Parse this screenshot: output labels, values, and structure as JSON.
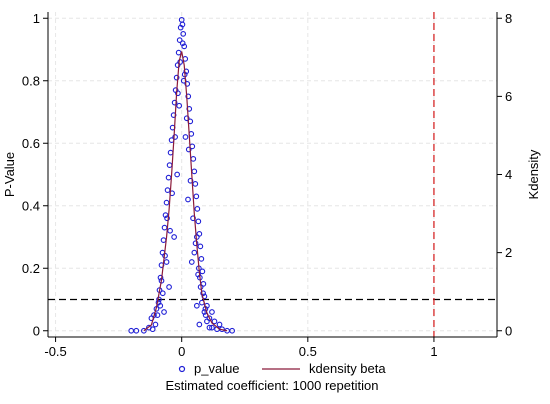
{
  "chart_data": {
    "type": "scatter",
    "title": "",
    "xlabel": "",
    "ylabel": "P-Value",
    "y2label": "Kdensity",
    "xlim": [
      -0.53,
      1.25
    ],
    "ylim": [
      -0.02,
      1.02
    ],
    "y2lim": [
      -0.16,
      8.16
    ],
    "x_ticks": [
      -0.5,
      0,
      0.5,
      1
    ],
    "x_tick_labels": [
      "-0.5",
      "0",
      "0.5",
      "1"
    ],
    "y_ticks": [
      0,
      0.2,
      0.4,
      0.6,
      0.8,
      1
    ],
    "y_tick_labels": [
      "0",
      "0.2",
      "0.4",
      "0.6",
      "0.8",
      "1"
    ],
    "y2_ticks": [
      0,
      2,
      4,
      6,
      8
    ],
    "y2_tick_labels": [
      "0",
      "2",
      "4",
      "6",
      "8"
    ],
    "grid": true,
    "reference_lines": [
      {
        "orientation": "horizontal",
        "value": 0.1,
        "style": "dashed",
        "color": "#000000"
      },
      {
        "orientation": "vertical",
        "value": 1,
        "style": "dashed",
        "color": "#d62728"
      }
    ],
    "series": [
      {
        "name": "p_value",
        "kind": "scatter",
        "axis": "left",
        "color": "#1f1fd6",
        "marker": "hollow-circle",
        "points": [
          [
            0.0,
            0.995
          ],
          [
            0.003,
            0.98
          ],
          [
            -0.004,
            0.97
          ],
          [
            0.006,
            0.95
          ],
          [
            -0.008,
            0.93
          ],
          [
            0.01,
            0.91
          ],
          [
            -0.012,
            0.89
          ],
          [
            0.014,
            0.87
          ],
          [
            -0.016,
            0.85
          ],
          [
            0.018,
            0.83
          ],
          [
            -0.02,
            0.81
          ],
          [
            0.022,
            0.79
          ],
          [
            -0.024,
            0.77
          ],
          [
            0.026,
            0.75
          ],
          [
            -0.028,
            0.73
          ],
          [
            0.03,
            0.71
          ],
          [
            -0.032,
            0.69
          ],
          [
            0.034,
            0.67
          ],
          [
            -0.036,
            0.65
          ],
          [
            0.038,
            0.63
          ],
          [
            -0.04,
            0.61
          ],
          [
            0.042,
            0.59
          ],
          [
            -0.044,
            0.57
          ],
          [
            0.046,
            0.55
          ],
          [
            -0.048,
            0.53
          ],
          [
            0.05,
            0.51
          ],
          [
            -0.052,
            0.49
          ],
          [
            0.054,
            0.47
          ],
          [
            -0.056,
            0.45
          ],
          [
            0.058,
            0.43
          ],
          [
            -0.06,
            0.41
          ],
          [
            0.062,
            0.39
          ],
          [
            -0.064,
            0.37
          ],
          [
            0.066,
            0.35
          ],
          [
            -0.068,
            0.33
          ],
          [
            0.07,
            0.31
          ],
          [
            -0.072,
            0.29
          ],
          [
            0.074,
            0.27
          ],
          [
            -0.076,
            0.25
          ],
          [
            0.078,
            0.23
          ],
          [
            -0.08,
            0.21
          ],
          [
            0.082,
            0.19
          ],
          [
            -0.084,
            0.17
          ],
          [
            0.086,
            0.15
          ],
          [
            -0.088,
            0.13
          ],
          [
            0.09,
            0.11
          ],
          [
            -0.092,
            0.09
          ],
          [
            0.094,
            0.07
          ],
          [
            -0.096,
            0.05
          ],
          [
            0.1,
            0.03
          ],
          [
            -0.104,
            0.02
          ],
          [
            0.11,
            0.01
          ],
          [
            -0.115,
            0.005
          ],
          [
            0.12,
            0.01
          ],
          [
            -0.13,
            0.01
          ],
          [
            0.14,
            0.005
          ],
          [
            -0.15,
            0.0
          ],
          [
            0.16,
            0.005
          ],
          [
            0.18,
            0.0
          ],
          [
            -0.18,
            0.0
          ],
          [
            -0.2,
            0.0
          ],
          [
            0.2,
            0.0
          ],
          [
            0.07,
            0.02
          ],
          [
            -0.07,
            0.06
          ],
          [
            0.06,
            0.08
          ],
          [
            -0.05,
            0.14
          ],
          [
            0.04,
            0.22
          ],
          [
            -0.03,
            0.3
          ],
          [
            0.025,
            0.42
          ],
          [
            -0.018,
            0.5
          ],
          [
            0.015,
            0.62
          ],
          [
            -0.01,
            0.72
          ],
          [
            0.008,
            0.8
          ],
          [
            -0.006,
            0.86
          ],
          [
            0.004,
            0.92
          ],
          [
            0.05,
            0.25
          ],
          [
            -0.06,
            0.22
          ],
          [
            0.065,
            0.18
          ],
          [
            -0.075,
            0.12
          ],
          [
            0.08,
            0.09
          ],
          [
            0.11,
            0.04
          ],
          [
            -0.1,
            0.07
          ],
          [
            0.09,
            0.06
          ],
          [
            -0.09,
            0.1
          ],
          [
            0.1,
            0.08
          ],
          [
            0.12,
            0.06
          ],
          [
            -0.12,
            0.04
          ],
          [
            0.13,
            0.03
          ],
          [
            -0.11,
            0.05
          ],
          [
            0.15,
            0.02
          ],
          [
            0.035,
            0.48
          ],
          [
            -0.038,
            0.44
          ],
          [
            0.045,
            0.36
          ],
          [
            -0.046,
            0.32
          ],
          [
            0.055,
            0.28
          ],
          [
            0.028,
            0.58
          ],
          [
            -0.026,
            0.62
          ],
          [
            0.02,
            0.68
          ],
          [
            -0.015,
            0.76
          ],
          [
            0.012,
            0.82
          ],
          [
            0.075,
            0.14
          ],
          [
            -0.08,
            0.16
          ],
          [
            0.085,
            0.12
          ],
          [
            -0.085,
            0.08
          ],
          [
            0.095,
            0.05
          ],
          [
            0.06,
            0.3
          ],
          [
            -0.058,
            0.36
          ],
          [
            0.068,
            0.2
          ],
          [
            -0.066,
            0.24
          ],
          [
            0.072,
            0.17
          ]
        ]
      },
      {
        "name": "kdensity beta",
        "kind": "line",
        "axis": "right",
        "color": "#8b1a3a",
        "points": [
          [
            -0.15,
            0.0
          ],
          [
            -0.12,
            0.15
          ],
          [
            -0.1,
            0.6
          ],
          [
            -0.08,
            1.3
          ],
          [
            -0.06,
            2.4
          ],
          [
            -0.05,
            3.1
          ],
          [
            -0.04,
            4.0
          ],
          [
            -0.03,
            5.0
          ],
          [
            -0.02,
            6.1
          ],
          [
            -0.01,
            6.9
          ],
          [
            0.0,
            7.15
          ],
          [
            0.01,
            6.8
          ],
          [
            0.02,
            6.0
          ],
          [
            0.03,
            5.0
          ],
          [
            0.04,
            4.0
          ],
          [
            0.05,
            3.0
          ],
          [
            0.06,
            2.2
          ],
          [
            0.07,
            1.5
          ],
          [
            0.08,
            0.95
          ],
          [
            0.1,
            0.45
          ],
          [
            0.12,
            0.2
          ],
          [
            0.15,
            0.04
          ],
          [
            0.18,
            0.0
          ]
        ]
      }
    ],
    "legend": {
      "position": "bottom",
      "entries": [
        "p_value",
        "kdensity beta"
      ]
    },
    "note": "Estimated coefficient: 1000 repetition"
  }
}
